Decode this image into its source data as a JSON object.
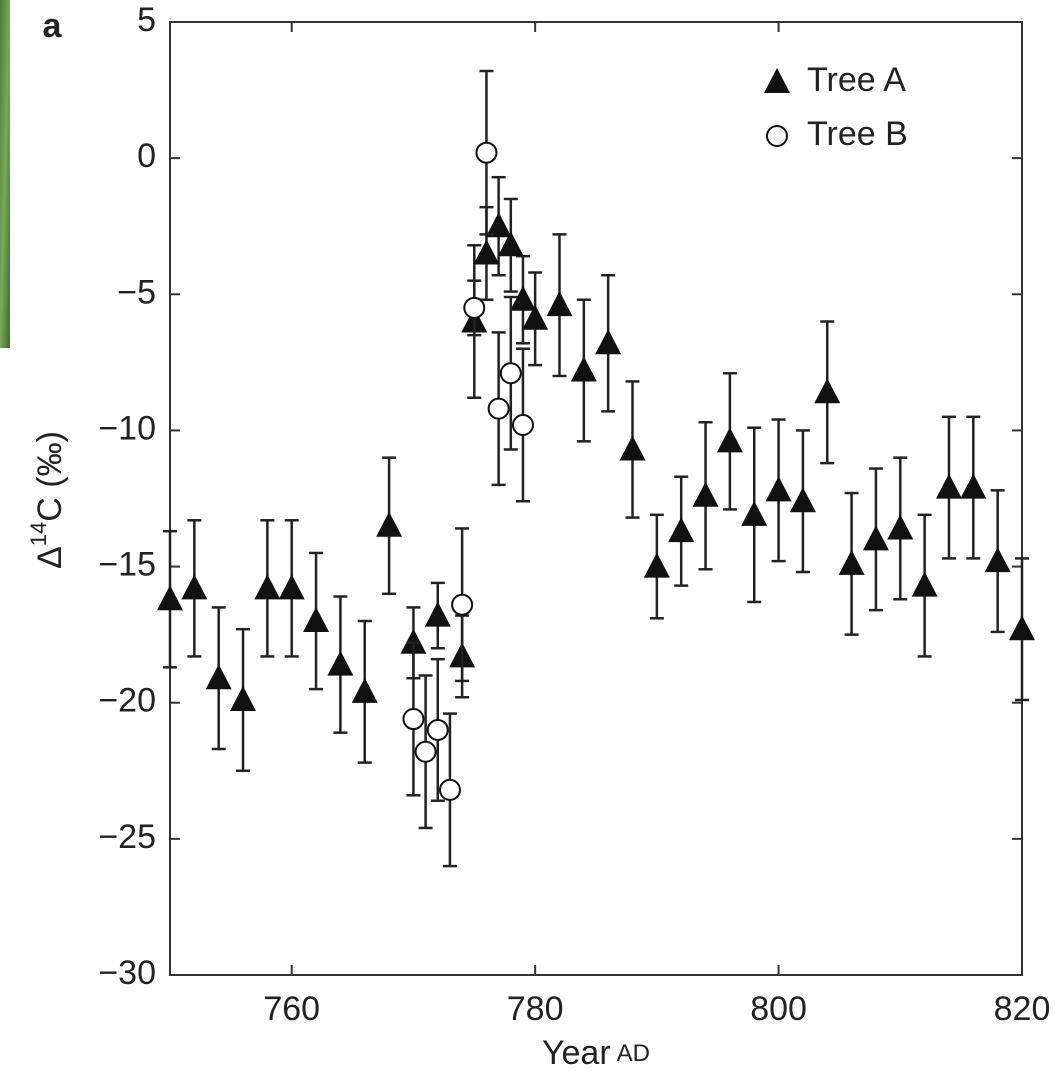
{
  "chart_data": {
    "type": "scatter",
    "panel_label": "a",
    "xlabel": {
      "main": "Year",
      "small": "AD"
    },
    "ylabel": {
      "symbol": "Δ",
      "sup": "14",
      "rest": "C (‰)"
    },
    "xlim": [
      750,
      820
    ],
    "xticks": [
      760,
      780,
      800,
      820
    ],
    "ylim": [
      -30,
      5
    ],
    "yticks": [
      {
        "value": -30,
        "label": "−30"
      },
      {
        "value": -25,
        "label": "−25"
      },
      {
        "value": -20,
        "label": "−20"
      },
      {
        "value": -15,
        "label": "−15"
      },
      {
        "value": -10,
        "label": "−10"
      },
      {
        "value": -5,
        "label": "−5"
      },
      0,
      5
    ],
    "legend": "top-right",
    "series": [
      {
        "name": "Tree A",
        "marker": "triangle",
        "color": "#111111",
        "x": [
          750,
          752,
          754,
          756,
          758,
          760,
          762,
          764,
          766,
          768,
          770,
          772,
          774,
          775,
          776,
          777,
          778,
          779,
          780,
          782,
          784,
          786,
          788,
          790,
          792,
          794,
          796,
          798,
          800,
          802,
          804,
          806,
          808,
          810,
          812,
          814,
          816,
          818,
          820
        ],
        "values": [
          -16.2,
          -15.8,
          -19.1,
          -19.9,
          -15.8,
          -15.8,
          -17.0,
          -18.6,
          -19.6,
          -13.5,
          -17.8,
          -16.8,
          -18.3,
          -6.0,
          -3.5,
          -2.5,
          -3.2,
          -5.2,
          -5.9,
          -5.4,
          -7.8,
          -6.8,
          -10.7,
          -15.0,
          -13.7,
          -12.4,
          -10.4,
          -13.1,
          -12.2,
          -12.6,
          -8.6,
          -14.9,
          -14.0,
          -13.6,
          -15.7,
          -12.1,
          -12.1,
          -14.8,
          -17.3
        ],
        "errors": [
          2.5,
          2.5,
          2.6,
          2.6,
          2.5,
          2.5,
          2.5,
          2.5,
          2.6,
          2.5,
          1.3,
          1.2,
          1.5,
          2.8,
          1.7,
          1.8,
          1.7,
          1.6,
          1.7,
          2.6,
          2.6,
          2.5,
          2.5,
          1.9,
          2.0,
          2.7,
          2.5,
          3.2,
          2.6,
          2.6,
          2.6,
          2.6,
          2.6,
          2.6,
          2.6,
          2.6,
          2.6,
          2.6,
          2.6
        ]
      },
      {
        "name": "Tree B",
        "marker": "circle",
        "color": "#111111",
        "x": [
          770,
          771,
          772,
          773,
          774,
          775,
          776,
          777,
          778,
          779
        ],
        "values": [
          -20.6,
          -21.8,
          -21.0,
          -23.2,
          -16.4,
          -5.5,
          0.2,
          -9.2,
          -7.9,
          -9.8
        ],
        "errors": [
          2.8,
          2.8,
          2.6,
          2.8,
          2.8,
          1.0,
          3.0,
          2.8,
          2.8,
          2.8
        ]
      }
    ]
  }
}
